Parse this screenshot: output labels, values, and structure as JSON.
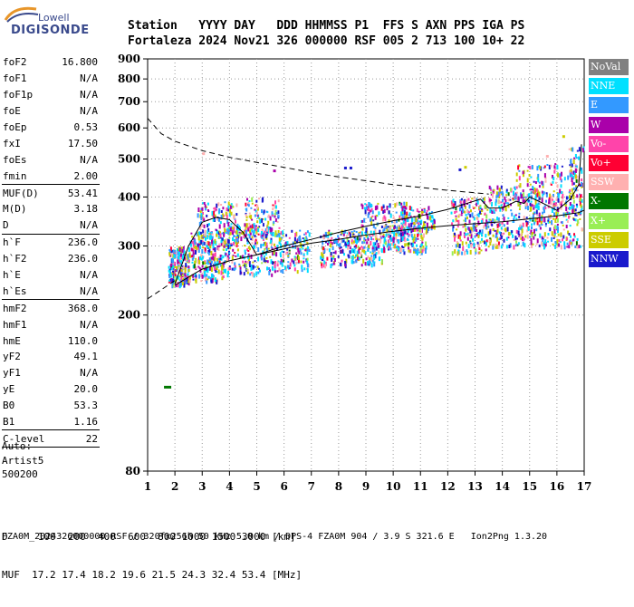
{
  "logo": {
    "brand": "Lowell",
    "product": "DIGISONDE"
  },
  "header": {
    "line1": "Station   YYYY DAY   DDD HHMMSS P1  FFS S AXN PPS IGA PS",
    "line2": "Fortaleza 2024 Nov21 326 000000 RSF 005 2 713 100 10+ 22"
  },
  "params": [
    {
      "k": "foF2",
      "v": "16.800"
    },
    {
      "k": "foF1",
      "v": "N/A"
    },
    {
      "k": "foF1p",
      "v": "N/A"
    },
    {
      "k": "foE",
      "v": "N/A"
    },
    {
      "k": "foEp",
      "v": "0.53"
    },
    {
      "k": "fxI",
      "v": "17.50"
    },
    {
      "k": "foEs",
      "v": "N/A"
    },
    {
      "k": "fmin",
      "v": "2.00",
      "sep": true
    },
    {
      "k": "MUF(D)",
      "v": "53.41"
    },
    {
      "k": "M(D)",
      "v": "3.18"
    },
    {
      "k": "D",
      "v": "N/A",
      "sep": true
    },
    {
      "k": "h`F",
      "v": "236.0"
    },
    {
      "k": "h`F2",
      "v": "236.0"
    },
    {
      "k": "h`E",
      "v": "N/A"
    },
    {
      "k": "h`Es",
      "v": "N/A",
      "sep": true
    },
    {
      "k": "hmF2",
      "v": "368.0"
    },
    {
      "k": "hmF1",
      "v": "N/A"
    },
    {
      "k": "hmE",
      "v": "110.0"
    },
    {
      "k": "yF2",
      "v": "49.1"
    },
    {
      "k": "yF1",
      "v": "N/A"
    },
    {
      "k": "yE",
      "v": "20.0"
    },
    {
      "k": "B0",
      "v": "53.3"
    },
    {
      "k": "B1",
      "v": "1.16",
      "sep": true
    },
    {
      "k": "C-level",
      "v": "22",
      "sep": true
    }
  ],
  "auto": {
    "line1": "Auto:",
    "line2": "Artist5",
    "line3": "500200"
  },
  "legend": [
    {
      "label": "NoVal",
      "color": "#808080"
    },
    {
      "label": "NNE",
      "color": "#00e0ff"
    },
    {
      "label": "E",
      "color": "#3399ff"
    },
    {
      "label": "W",
      "color": "#aa00aa"
    },
    {
      "label": "Vo-",
      "color": "#ff44aa"
    },
    {
      "label": "Vo+",
      "color": "#ff0033"
    },
    {
      "label": "SSW",
      "color": "#ffb0b0"
    },
    {
      "label": "X-",
      "color": "#007700"
    },
    {
      "label": "X+",
      "color": "#99ee55"
    },
    {
      "label": "SSE",
      "color": "#cccc00"
    },
    {
      "label": "NNW",
      "color": "#1a1acc"
    }
  ],
  "footer": {
    "d_line": "D     100  200  400  600  800 1000 1500 3000 [km]",
    "muf_line": "MUF  17.2 17.4 18.2 19.6 21.5 24.3 32.4 53.4 [MHz]",
    "credit": "FZA0M_2024326000000.RSF / 320fx256h 50 kHz 5.0 km / DPS-4 FZA0M 904 / 3.9 S 321.6 E   Ion2Png 1.3.20"
  },
  "chart_data": {
    "type": "scatter",
    "title": "",
    "xlabel": "",
    "ylabel": "",
    "xlim": [
      1,
      17
    ],
    "ylim": [
      80,
      900
    ],
    "y_scale": "log",
    "x_ticks": [
      1,
      2,
      3,
      4,
      5,
      6,
      7,
      8,
      9,
      10,
      11,
      12,
      13,
      14,
      15,
      16,
      17
    ],
    "y_ticks": [
      80,
      200,
      300,
      400,
      500,
      600,
      700,
      800,
      900
    ],
    "grid": true,
    "echo_clusters": [
      {
        "x": [
          1.75,
          2.5
        ],
        "y": [
          240,
          300
        ],
        "n": 220
      },
      {
        "x": [
          2.5,
          3.8
        ],
        "y": [
          245,
          330
        ],
        "n": 260
      },
      {
        "x": [
          2.8,
          4.3
        ],
        "y": [
          300,
          390
        ],
        "n": 150
      },
      {
        "x": [
          3.8,
          5.6
        ],
        "y": [
          255,
          340
        ],
        "n": 230
      },
      {
        "x": [
          4.5,
          5.8
        ],
        "y": [
          320,
          400
        ],
        "n": 110
      },
      {
        "x": [
          5.6,
          6.9
        ],
        "y": [
          260,
          330
        ],
        "n": 150
      },
      {
        "x": [
          7.3,
          9.6
        ],
        "y": [
          270,
          330
        ],
        "n": 270
      },
      {
        "x": [
          8.8,
          10.5
        ],
        "y": [
          320,
          390
        ],
        "n": 140
      },
      {
        "x": [
          9.6,
          11.2
        ],
        "y": [
          290,
          340
        ],
        "n": 180
      },
      {
        "x": [
          10.2,
          11.5
        ],
        "y": [
          330,
          380
        ],
        "n": 110
      },
      {
        "x": [
          12.1,
          13.5
        ],
        "y": [
          290,
          400
        ],
        "n": 220
      },
      {
        "x": [
          13.5,
          14.6
        ],
        "y": [
          300,
          430
        ],
        "n": 180
      },
      {
        "x": [
          14.6,
          16.9
        ],
        "y": [
          300,
          420
        ],
        "n": 330
      },
      {
        "x": [
          14.5,
          16.9
        ],
        "y": [
          380,
          490
        ],
        "n": 140
      },
      {
        "x": [
          16.4,
          16.95
        ],
        "y": [
          420,
          540
        ],
        "n": 40
      }
    ],
    "isolated_echoes": [
      {
        "x": 1.6,
        "y": 132,
        "color": "#007700"
      },
      {
        "x": 3.0,
        "y": 520,
        "color": "#ffb0b0"
      },
      {
        "x": 5.6,
        "y": 470,
        "color": "#aa00aa"
      },
      {
        "x": 8.2,
        "y": 478,
        "color": "#1a1acc"
      },
      {
        "x": 8.4,
        "y": 478,
        "color": "#1a1acc"
      },
      {
        "x": 12.4,
        "y": 473,
        "color": "#1a1acc"
      },
      {
        "x": 12.6,
        "y": 480,
        "color": "#cccc00"
      },
      {
        "x": 15.6,
        "y": 512,
        "color": "#ffb0b0"
      },
      {
        "x": 16.2,
        "y": 575,
        "color": "#cccc00"
      }
    ],
    "trace_upper": {
      "x": [
        2.0,
        2.5,
        3.0,
        3.5,
        4.0,
        4.5,
        5.0,
        6,
        7,
        8,
        9,
        10,
        11,
        12,
        13.2,
        13.5,
        14.0,
        14.5,
        14.8,
        15.0,
        15.5,
        16.0,
        16.5,
        16.8,
        16.9
      ],
      "y": [
        240,
        300,
        345,
        355,
        350,
        325,
        285,
        300,
        312,
        325,
        337,
        348,
        358,
        372,
        395,
        375,
        375,
        390,
        385,
        400,
        385,
        370,
        395,
        430,
        545
      ]
    },
    "trace_lower": {
      "x": [
        2.0,
        2.5,
        3,
        4,
        5,
        6,
        7,
        8,
        9,
        10,
        11,
        12,
        13,
        14,
        15,
        16,
        16.8,
        17.0
      ],
      "y": [
        238,
        250,
        262,
        275,
        285,
        295,
        305,
        312,
        320,
        327,
        333,
        338,
        342,
        346,
        352,
        358,
        365,
        370
      ]
    },
    "muf_curve": {
      "x": [
        1,
        1.5,
        2,
        3,
        4,
        5,
        6,
        7,
        8,
        9,
        10,
        11,
        12,
        13,
        13.5
      ],
      "y": [
        635,
        580,
        555,
        525,
        505,
        490,
        476,
        462,
        450,
        440,
        430,
        423,
        416,
        410,
        407
      ]
    },
    "muf_curve_low": {
      "x": [
        1,
        1.5,
        2
      ],
      "y": [
        220,
        232,
        245
      ]
    }
  }
}
